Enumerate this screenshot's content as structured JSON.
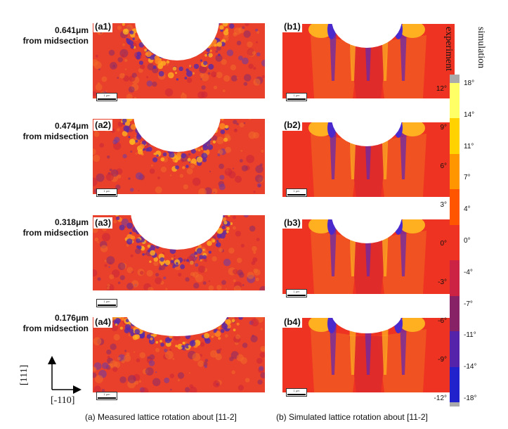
{
  "rows": [
    {
      "distance": "0.641μm",
      "suffix": "from midsection",
      "a_label": "(a1)",
      "b_label": "(b1)"
    },
    {
      "distance": "0.474μm",
      "suffix": "from midsection",
      "a_label": "(a2)",
      "b_label": "(b2)"
    },
    {
      "distance": "0.318μm",
      "suffix": "from midsection",
      "a_label": "(a3)",
      "b_label": "(b3)"
    },
    {
      "distance": "0.176μm",
      "suffix": "from midsection",
      "a_label": "(a4)",
      "b_label": "(b4)"
    }
  ],
  "scale_bar_text": "1 μm",
  "colorbar": {
    "title_experiment": "experiment",
    "title_simulation": "simulation",
    "experiment_ticks": [
      "12°",
      "9°",
      "6°",
      "3°",
      "0°",
      "-3°",
      "-6°",
      "-9°",
      "-12°"
    ],
    "simulation_ticks": [
      "18°",
      "14°",
      "11°",
      "7°",
      "4°",
      "0°",
      "-4°",
      "-7°",
      "-11°",
      "-14°",
      "-18°"
    ],
    "colors": [
      "#ffff66",
      "#ffd200",
      "#ff9600",
      "#ff5500",
      "#ee3322",
      "#cc2244",
      "#882266",
      "#5522aa",
      "#2222cc"
    ]
  },
  "axes": {
    "vertical": "[111]",
    "horizontal": "[-110]"
  },
  "captions": {
    "a": "(a) Measured lattice rotation about [11-2]",
    "b": "(b) Simulated lattice rotation about [11-2]"
  }
}
